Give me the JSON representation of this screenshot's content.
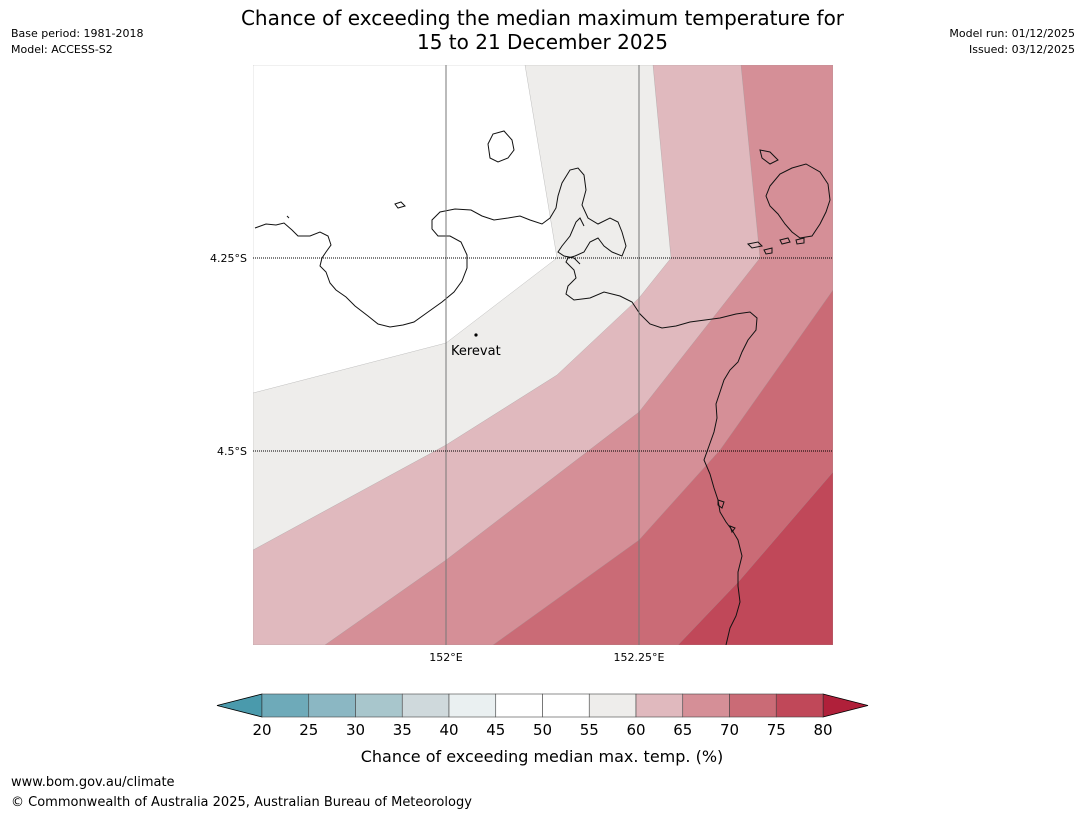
{
  "title": {
    "line1": "Chance of exceeding the median maximum temperature for",
    "line2": "15 to 21 December 2025"
  },
  "meta_left": {
    "base_period": "Base period: 1981-2018",
    "model": "Model: ACCESS-S2"
  },
  "meta_right": {
    "model_run": "Model run: 01/12/2025",
    "issued": "Issued: 03/12/2025"
  },
  "map": {
    "lat_labels": [
      "4.25°S",
      "4.5°S"
    ],
    "lon_labels": [
      "152°E",
      "152.25°E"
    ],
    "place": {
      "name": "Kerevat"
    }
  },
  "colorbar": {
    "ticks": [
      "20",
      "25",
      "30",
      "35",
      "40",
      "45",
      "50",
      "55",
      "60",
      "65",
      "70",
      "75",
      "80"
    ],
    "label": "Chance of exceeding median max. temp. (%)",
    "colors": {
      "under": "#4a9aac",
      "b20_25": "#6eaab9",
      "b25_30": "#8bb7c3",
      "b30_35": "#a8c6cc",
      "b35_40": "#cfd9dc",
      "b40_45": "#eaf0f1",
      "b45_50": "#ffffff",
      "b50_55": "#ffffff",
      "b55_60": "#eeedeb",
      "b60_65": "#e0b9be",
      "b65_70": "#d58f97",
      "b70_75": "#ca6b76",
      "b75_80": "#c04859",
      "over": "#b0203a"
    }
  },
  "footer": {
    "url": "www.bom.gov.au/climate",
    "copyright": "© Commonwealth of Australia 2025, Australian Bureau of Meteorology"
  }
}
